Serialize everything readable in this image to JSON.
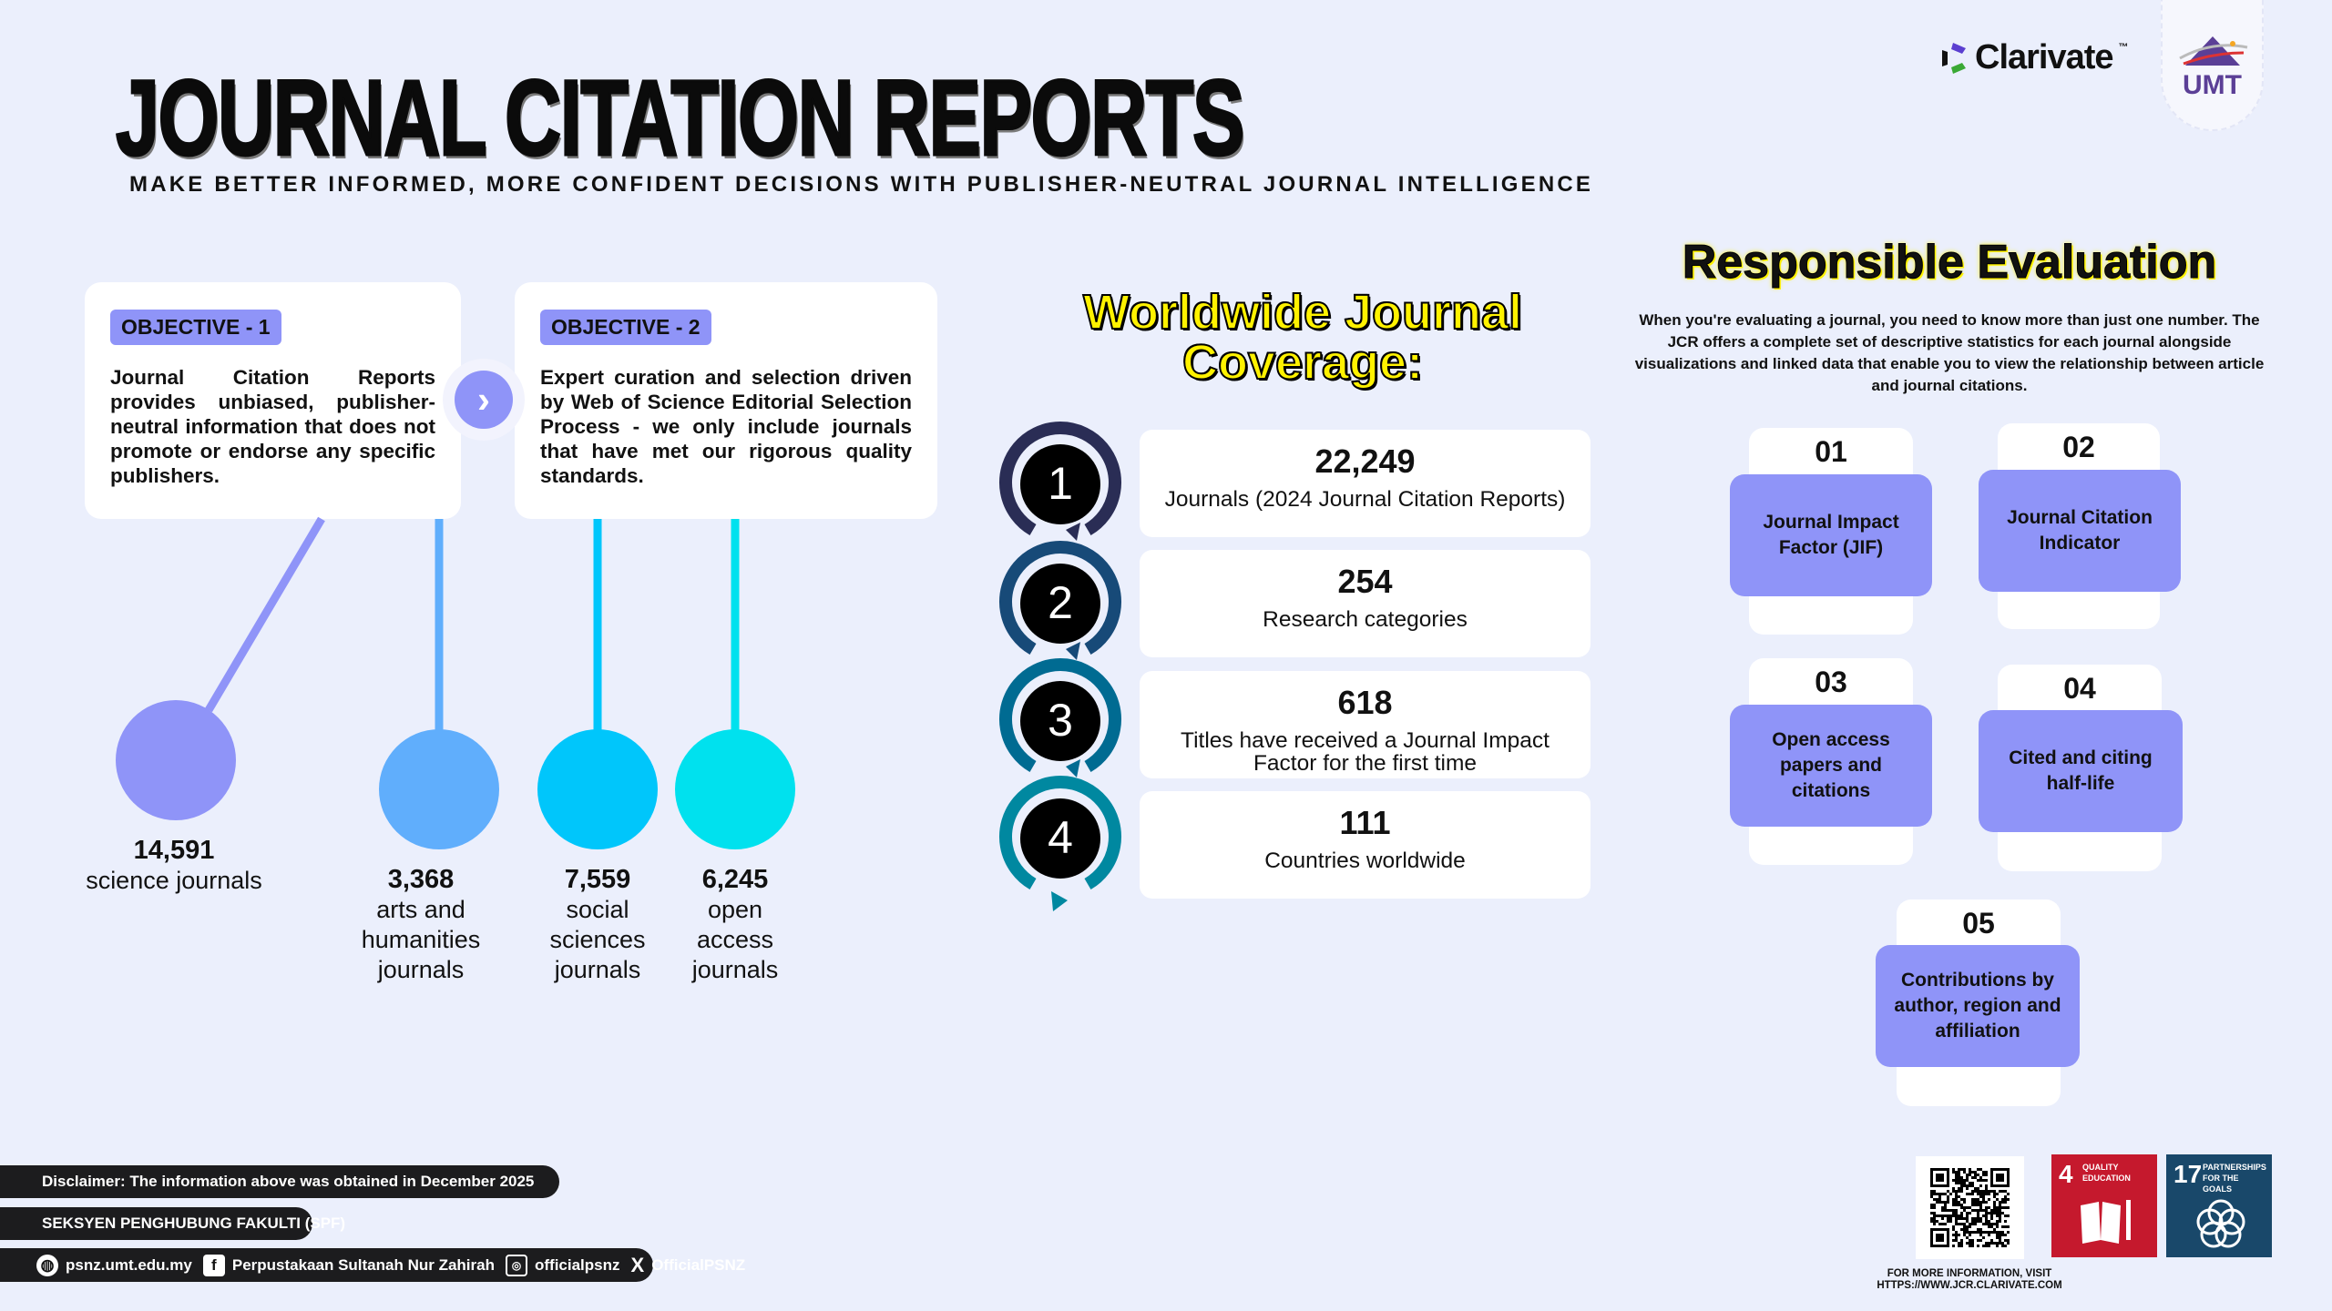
{
  "header": {
    "title": "JOURNAL CITATION REPORTS",
    "subtitle": "MAKE BETTER INFORMED, MORE CONFIDENT DECISIONS WITH PUBLISHER-NEUTRAL JOURNAL INTELLIGENCE"
  },
  "logos": {
    "clarivate": "Clarivate",
    "clarivate_tm": "™",
    "umt": "UMT"
  },
  "objectives": [
    {
      "tag": "OBJECTIVE - 1",
      "text": "Journal Citation Reports provides unbiased, publisher-neutral information that does not promote or endorse any specific publishers."
    },
    {
      "tag": "OBJECTIVE - 2",
      "text": "Expert curation and selection driven by Web of Science Editorial Selection Process - we only include journals that have met our rigorous quality standards."
    }
  ],
  "journal_counts": [
    {
      "value": "14,591",
      "label": "science journals",
      "color": "#8f94f8"
    },
    {
      "value": "3,368",
      "label": "arts and humanities journals",
      "color": "#60aefc"
    },
    {
      "value": "7,559",
      "label": "social sciences journals",
      "color": "#00c6fb"
    },
    {
      "value": "6,245",
      "label": "open access journals",
      "color": "#00e1ee"
    }
  ],
  "coverage": {
    "title_line1": "Worldwide Journal",
    "title_line2": "Coverage:",
    "items": [
      {
        "n": "1",
        "value": "22,249",
        "label": "Journals (2024 Journal Citation Reports)",
        "color": "#2a2d55"
      },
      {
        "n": "2",
        "value": "254",
        "label": "Research categories",
        "color": "#174a78"
      },
      {
        "n": "3",
        "value": "618",
        "label": "Titles have received a Journal Impact Factor for the first time",
        "color": "#006b92"
      },
      {
        "n": "4",
        "value": "111",
        "label": "Countries worldwide",
        "color": "#0088a0"
      }
    ]
  },
  "responsible": {
    "title": "Responsible Evaluation",
    "text": "When you're evaluating a journal, you need to know more than just one number. The JCR offers a complete set of descriptive statistics for each journal alongside visualizations and linked data that enable you to view the relationship between article and journal citations.",
    "tiles": [
      {
        "num": "01",
        "label": "Journal Impact Factor (JIF)"
      },
      {
        "num": "02",
        "label": "Journal Citation Indicator"
      },
      {
        "num": "03",
        "label": "Open access papers and citations"
      },
      {
        "num": "04",
        "label": "Cited and citing half-life"
      },
      {
        "num": "05",
        "label": "Contributions by author, region and affiliation"
      }
    ]
  },
  "footer": {
    "disclaimer": "Disclaimer: The information above was obtained in December 2025",
    "section": "SEKSYEN PENGHUBUNG FAKULTI (SPF)",
    "social": [
      {
        "icon": "globe-icon",
        "text": "psnz.umt.edu.my"
      },
      {
        "icon": "facebook-icon",
        "text": "Perpustakaan Sultanah Nur Zahirah"
      },
      {
        "icon": "instagram-icon",
        "text": "officialpsnz"
      },
      {
        "icon": "x-icon",
        "text": "OfficialPSNZ"
      }
    ],
    "more_info_line1": "FOR MORE INFORMATION, VISIT",
    "more_info_line2": "HTTPS://WWW.JCR.CLARIVATE.COM",
    "sdg4": {
      "num": "4",
      "text": "QUALITY EDUCATION",
      "color": "#c5192d"
    },
    "sdg17": {
      "num": "17",
      "text": "PARTNERSHIPS FOR THE GOALS",
      "color": "#19486a"
    }
  }
}
